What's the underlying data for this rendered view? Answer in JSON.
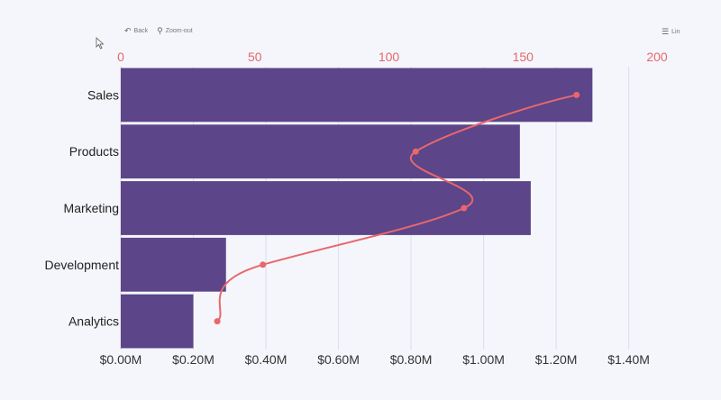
{
  "toolbar": {
    "back_label": "Back",
    "zoom_out_label": "Zoom-out",
    "menu_label": "Lin"
  },
  "icons": {
    "back": "back-arrow-icon",
    "zoom_out": "magnifier-icon",
    "menu": "list-icon",
    "cursor": "mouse-pointer-icon"
  },
  "colors": {
    "bar": "#5c4589",
    "line": "#e8676c",
    "top_axis_text": "#e8676c",
    "grid": "#d7d4e4",
    "background": "#f4f6fb"
  },
  "chart_data": {
    "type": "bar",
    "orientation": "horizontal",
    "categories": [
      "Sales",
      "Products",
      "Marketing",
      "Development",
      "Analytics"
    ],
    "series": [
      {
        "type": "bar",
        "values": [
          1.3,
          1.1,
          1.13,
          0.29,
          0.2
        ],
        "unit": "$M"
      },
      {
        "type": "line",
        "values": [
          170,
          110,
          128,
          53,
          36
        ],
        "axis": "top"
      }
    ],
    "x_axis": {
      "ticks": [
        "$0.00M",
        "$0.20M",
        "$0.40M",
        "$0.60M",
        "$0.80M",
        "$1.00M",
        "$1.20M",
        "$1.40M"
      ],
      "range": [
        0,
        1.55
      ]
    },
    "top_axis": {
      "ticks": [
        "0",
        "50",
        "100",
        "150",
        "200"
      ],
      "range": [
        0,
        200
      ]
    },
    "grid": true,
    "legend": "none"
  }
}
